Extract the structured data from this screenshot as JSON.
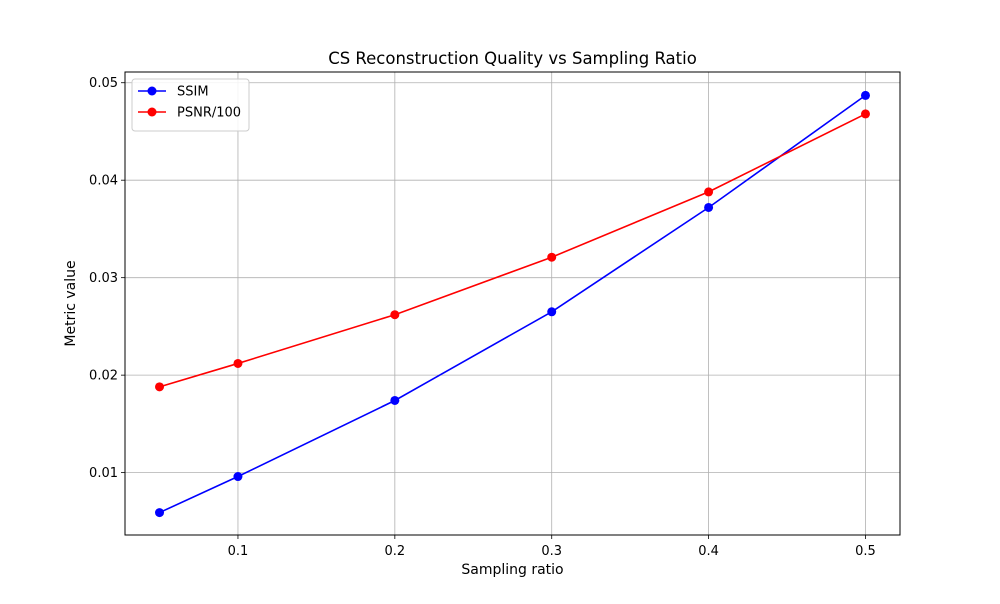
{
  "chart_data": {
    "type": "line",
    "title": "CS Reconstruction Quality vs Sampling Ratio",
    "xlabel": "Sampling ratio",
    "ylabel": "Metric value",
    "x": [
      0.05,
      0.1,
      0.2,
      0.3,
      0.4,
      0.5
    ],
    "xlim": [
      0.028,
      0.522
    ],
    "ylim": [
      0.0036,
      0.0511
    ],
    "xticks": [
      0.1,
      0.2,
      0.3,
      0.4,
      0.5
    ],
    "xtick_labels": [
      "0.1",
      "0.2",
      "0.3",
      "0.4",
      "0.5"
    ],
    "yticks": [
      0.01,
      0.02,
      0.03,
      0.04,
      0.05
    ],
    "ytick_labels": [
      "0.01",
      "0.02",
      "0.03",
      "0.04",
      "0.05"
    ],
    "grid": true,
    "legend_position": "top-left",
    "series": [
      {
        "name": "SSIM",
        "color": "#0000ff",
        "marker": "circle",
        "values": [
          0.0059,
          0.0096,
          0.0174,
          0.0265,
          0.0372,
          0.0487
        ]
      },
      {
        "name": "PSNR/100",
        "color": "#ff0000",
        "marker": "circle",
        "values": [
          0.0188,
          0.0212,
          0.0262,
          0.0321,
          0.0388,
          0.0468
        ]
      }
    ]
  }
}
